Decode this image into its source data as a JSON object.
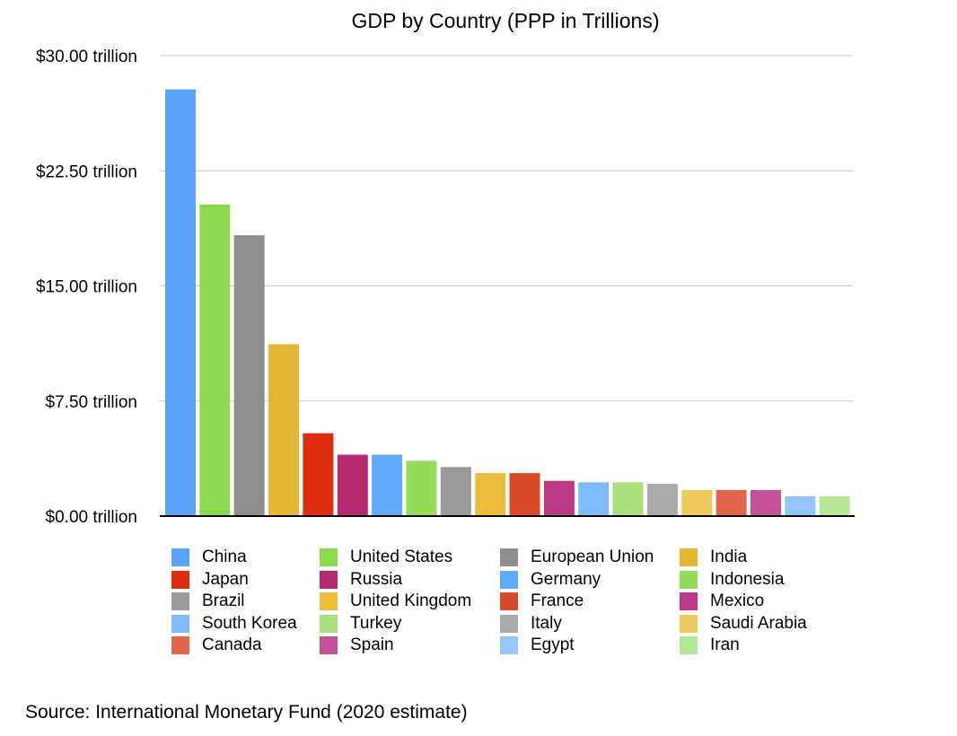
{
  "chart_data": {
    "type": "bar",
    "title": "GDP by Country (PPP in Trillions)",
    "xlabel": "",
    "ylabel": "",
    "ylim": [
      0,
      30
    ],
    "y_ticks": [
      0,
      7.5,
      15,
      22.5,
      30
    ],
    "y_tick_labels": [
      "$0.00 trillion",
      "$7.50 trillion",
      "$15.00 trillion",
      "$22.50 trillion",
      "$30.00 trillion"
    ],
    "grid": true,
    "legend_position": "bottom",
    "categories": [
      "China",
      "United States",
      "European Union",
      "India",
      "Japan",
      "Russia",
      "Germany",
      "Indonesia",
      "Brazil",
      "United Kingdom",
      "France",
      "Mexico",
      "South Korea",
      "Turkey",
      "Italy",
      "Saudi Arabia",
      "Canada",
      "Spain",
      "Egypt",
      "Iran"
    ],
    "values": [
      27.8,
      20.3,
      18.3,
      11.2,
      5.4,
      4.0,
      4.0,
      3.6,
      3.2,
      2.8,
      2.8,
      2.3,
      2.2,
      2.2,
      2.1,
      1.7,
      1.7,
      1.7,
      1.3,
      1.3
    ],
    "colors": [
      "#5ba3fa",
      "#8cd84f",
      "#8e8e8e",
      "#e5b631",
      "#dc2e0d",
      "#b52a70",
      "#62aaf9",
      "#95dc5a",
      "#9a9a9a",
      "#ecbd3c",
      "#dc4a2c",
      "#bb3a86",
      "#7fbcfb",
      "#a9e07b",
      "#aaaaaa",
      "#eec95c",
      "#e1644d",
      "#c35299",
      "#93c6fc",
      "#b6e795"
    ]
  },
  "legend": [
    "China",
    "Japan",
    "Brazil",
    "South Korea",
    "Canada",
    "United States",
    "Russia",
    "United Kingdom",
    "Turkey",
    "Spain",
    "European Union",
    "Germany",
    "France",
    "Italy",
    "Egypt",
    "India",
    "Indonesia",
    "Mexico",
    "Saudi Arabia",
    "Iran"
  ],
  "source": "Source: International Monetary Fund (2020 estimate)"
}
